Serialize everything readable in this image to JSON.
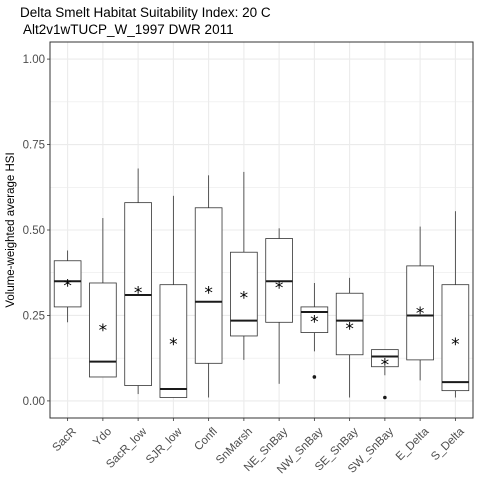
{
  "chart_data": {
    "type": "boxplot",
    "title": "Delta Smelt Habitat Suitability Index: 20 C",
    "subtitle": " Alt2v1wTUCP_W_1997 DWR 2011",
    "xlabel": "",
    "ylabel": "Volume-weighted average HSI",
    "ylim": [
      -0.05,
      1.05
    ],
    "yticks": [
      0.0,
      0.25,
      0.5,
      0.75,
      1.0
    ],
    "ytick_labels": [
      "0.00",
      "0.25",
      "0.50",
      "0.75",
      "1.00"
    ],
    "grid": true,
    "mean_marker": "*",
    "categories": [
      "SacR",
      "Ydo",
      "SacR_low",
      "SJR_low",
      "Confl",
      "SnMarsh",
      "NE_SnBay",
      "NW_SnBay",
      "SE_SnBay",
      "SW_SnBay",
      "E_Delta",
      "S_Delta"
    ],
    "boxes": [
      {
        "category": "SacR",
        "whisker_low": 0.23,
        "q1": 0.275,
        "median": 0.35,
        "q3": 0.41,
        "whisker_high": 0.44,
        "mean": 0.34,
        "outliers": []
      },
      {
        "category": "Ydo",
        "whisker_low": 0.07,
        "q1": 0.07,
        "median": 0.115,
        "q3": 0.345,
        "whisker_high": 0.535,
        "mean": 0.21,
        "outliers": []
      },
      {
        "category": "SacR_low",
        "whisker_low": 0.02,
        "q1": 0.045,
        "median": 0.31,
        "q3": 0.58,
        "whisker_high": 0.68,
        "mean": 0.32,
        "outliers": []
      },
      {
        "category": "SJR_low",
        "whisker_low": 0.01,
        "q1": 0.01,
        "median": 0.035,
        "q3": 0.34,
        "whisker_high": 0.6,
        "mean": 0.17,
        "outliers": []
      },
      {
        "category": "Confl",
        "whisker_low": 0.01,
        "q1": 0.11,
        "median": 0.29,
        "q3": 0.565,
        "whisker_high": 0.66,
        "mean": 0.32,
        "outliers": []
      },
      {
        "category": "SnMarsh",
        "whisker_low": 0.12,
        "q1": 0.19,
        "median": 0.235,
        "q3": 0.435,
        "whisker_high": 0.67,
        "mean": 0.305,
        "outliers": []
      },
      {
        "category": "NE_SnBay",
        "whisker_low": 0.05,
        "q1": 0.23,
        "median": 0.35,
        "q3": 0.475,
        "whisker_high": 0.505,
        "mean": 0.335,
        "outliers": []
      },
      {
        "category": "NW_SnBay",
        "whisker_low": 0.145,
        "q1": 0.2,
        "median": 0.26,
        "q3": 0.275,
        "whisker_high": 0.345,
        "mean": 0.235,
        "outliers": [
          0.07
        ]
      },
      {
        "category": "SE_SnBay",
        "whisker_low": 0.01,
        "q1": 0.135,
        "median": 0.235,
        "q3": 0.315,
        "whisker_high": 0.36,
        "mean": 0.215,
        "outliers": []
      },
      {
        "category": "SW_SnBay",
        "whisker_low": 0.075,
        "q1": 0.1,
        "median": 0.13,
        "q3": 0.15,
        "whisker_high": 0.15,
        "mean": 0.11,
        "outliers": [
          0.01
        ]
      },
      {
        "category": "E_Delta",
        "whisker_low": 0.06,
        "q1": 0.12,
        "median": 0.25,
        "q3": 0.395,
        "whisker_high": 0.51,
        "mean": 0.26,
        "outliers": []
      },
      {
        "category": "S_Delta",
        "whisker_low": 0.01,
        "q1": 0.03,
        "median": 0.055,
        "q3": 0.34,
        "whisker_high": 0.555,
        "mean": 0.17,
        "outliers": []
      }
    ]
  }
}
